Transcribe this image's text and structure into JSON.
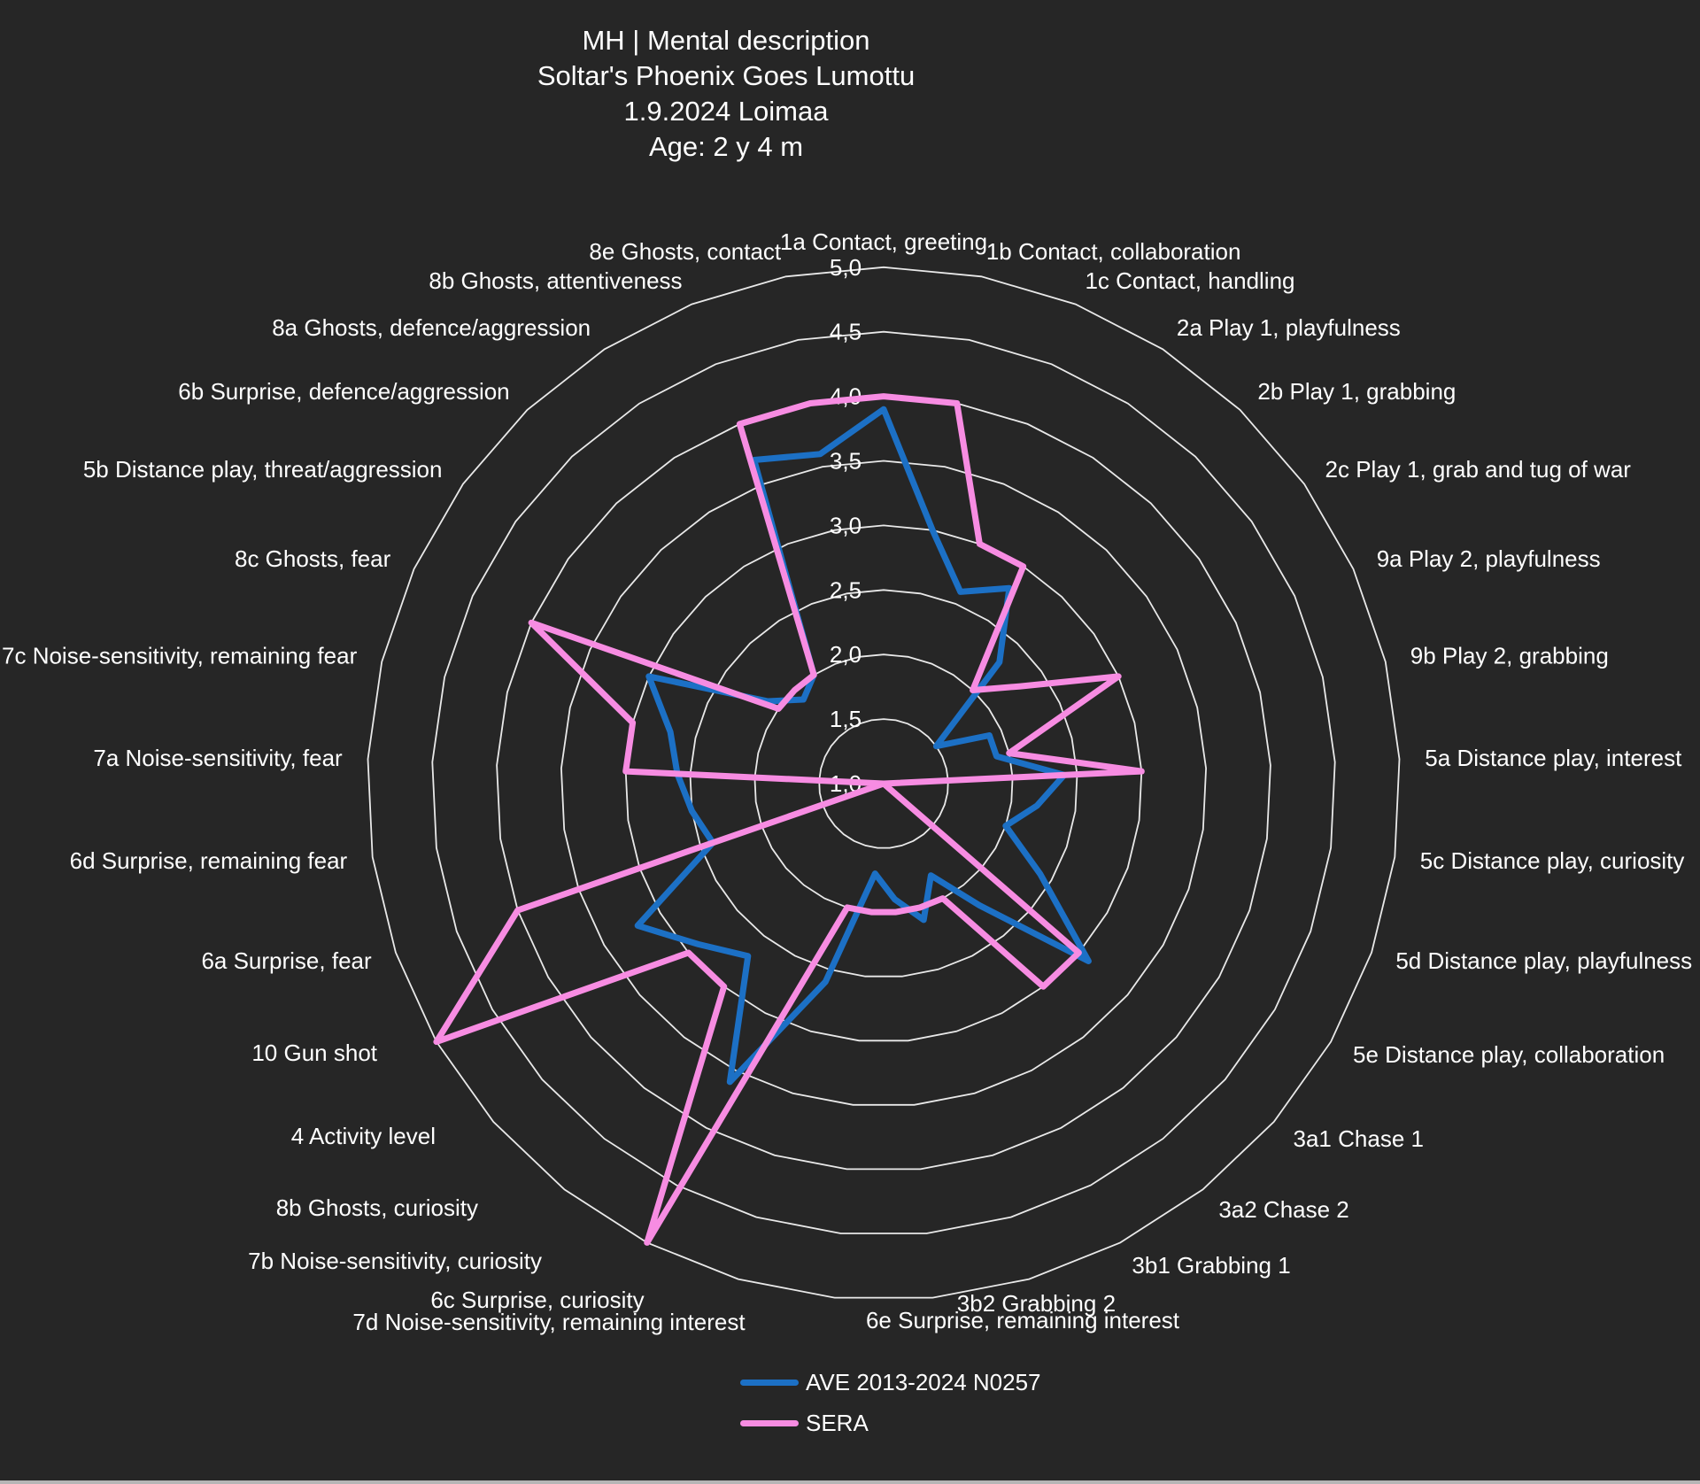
{
  "title": {
    "line1": "MH | Mental description",
    "line2": "Soltar's Phoenix Goes Lumottu",
    "line3": "1.9.2024 Loimaa",
    "line4": "Age: 2 y 4 m"
  },
  "colors": {
    "background": "#262626",
    "grid": "#E9E9E9",
    "text": "#FFFFFF",
    "ave_blue": "#1C70C5",
    "sera_pink": "#F78CE2"
  },
  "legend": {
    "items": [
      {
        "label": "AVE 2013-2024 N0257",
        "color": "#1C70C5"
      },
      {
        "label": "SERA",
        "color": "#F78CE2"
      }
    ]
  },
  "chart_data": {
    "type": "radar",
    "title": "MH | Mental description",
    "axis": {
      "min": 1.0,
      "max": 5.0,
      "step": 0.5,
      "tick_labels": [
        "5,0",
        "4,5",
        "4,0",
        "3,5",
        "3,0",
        "2,5",
        "2,0",
        "1,5",
        "1,0"
      ],
      "grid": true
    },
    "legend_position": "bottom",
    "categories": [
      "1a Contact, greeting",
      "1b Contact, collaboration",
      "1c Contact, handling",
      "2a Play 1, playfulness",
      "2b Play 1, grabbing",
      "2c Play 1, grab and tug of war",
      "9a Play 2, playfulness",
      "9b Play 2, grabbing",
      "5a Distance play, interest",
      "5c Distance play, curiosity",
      "5d Distance play, playfulness",
      "5e Distance play, collaboration",
      "3a1 Chase 1",
      "3a2 Chase 2",
      "3b1 Grabbing 1",
      "3b2 Grabbing 2",
      "6e Surprise, remaining interest",
      "7d Noise-sensitivity, remaining interest",
      "6c Surprise, curiosity",
      "7b Noise-sensitivity, curiosity",
      "8b Ghosts, curiosity",
      "4 Activity level",
      "10 Gun shot",
      "6a Surprise, fear",
      "6d Surprise, remaining fear",
      "7a Noise-sensitivity, fear",
      "7c Noise-sensitivity, remaining fear",
      "8c Ghosts, fear",
      "5b Distance play, threat/aggression",
      "6b Surprise, defence/aggression",
      "8a Ghosts, defence/aggression",
      "8b Ghosts, attentiveness",
      "8e Ghosts, contact"
    ],
    "series": [
      {
        "name": "AVE 2013-2024 N0257",
        "color": "#1C70C5",
        "values": [
          3.9,
          3.0,
          2.6,
          2.8,
          2.3,
          1.5,
          1.9,
          1.9,
          2.4,
          2.2,
          2.0,
          2.4,
          3.1,
          2.2,
          1.8,
          2.1,
          1.9,
          1.7,
          2.6,
          3.6,
          2.7,
          2.9,
          3.2,
          2.4,
          2.5,
          2.6,
          2.7,
          3.0,
          2.1,
          1.9,
          2.0,
          3.7,
          3.6
        ]
      },
      {
        "name": "SERA",
        "color": "#F78CE2",
        "values": [
          4.0,
          4.0,
          3.0,
          3.0,
          2.0,
          2.3,
          3.0,
          2.0,
          3.0,
          1.0,
          1.0,
          1.0,
          3.0,
          3.0,
          2.0,
          2.0,
          2.0,
          2.0,
          2.0,
          5.0,
          3.0,
          3.0,
          5.0,
          4.0,
          1.0,
          3.0,
          3.0,
          4.0,
          2.0,
          2.0,
          2.0,
          4.0,
          4.0
        ]
      }
    ]
  }
}
